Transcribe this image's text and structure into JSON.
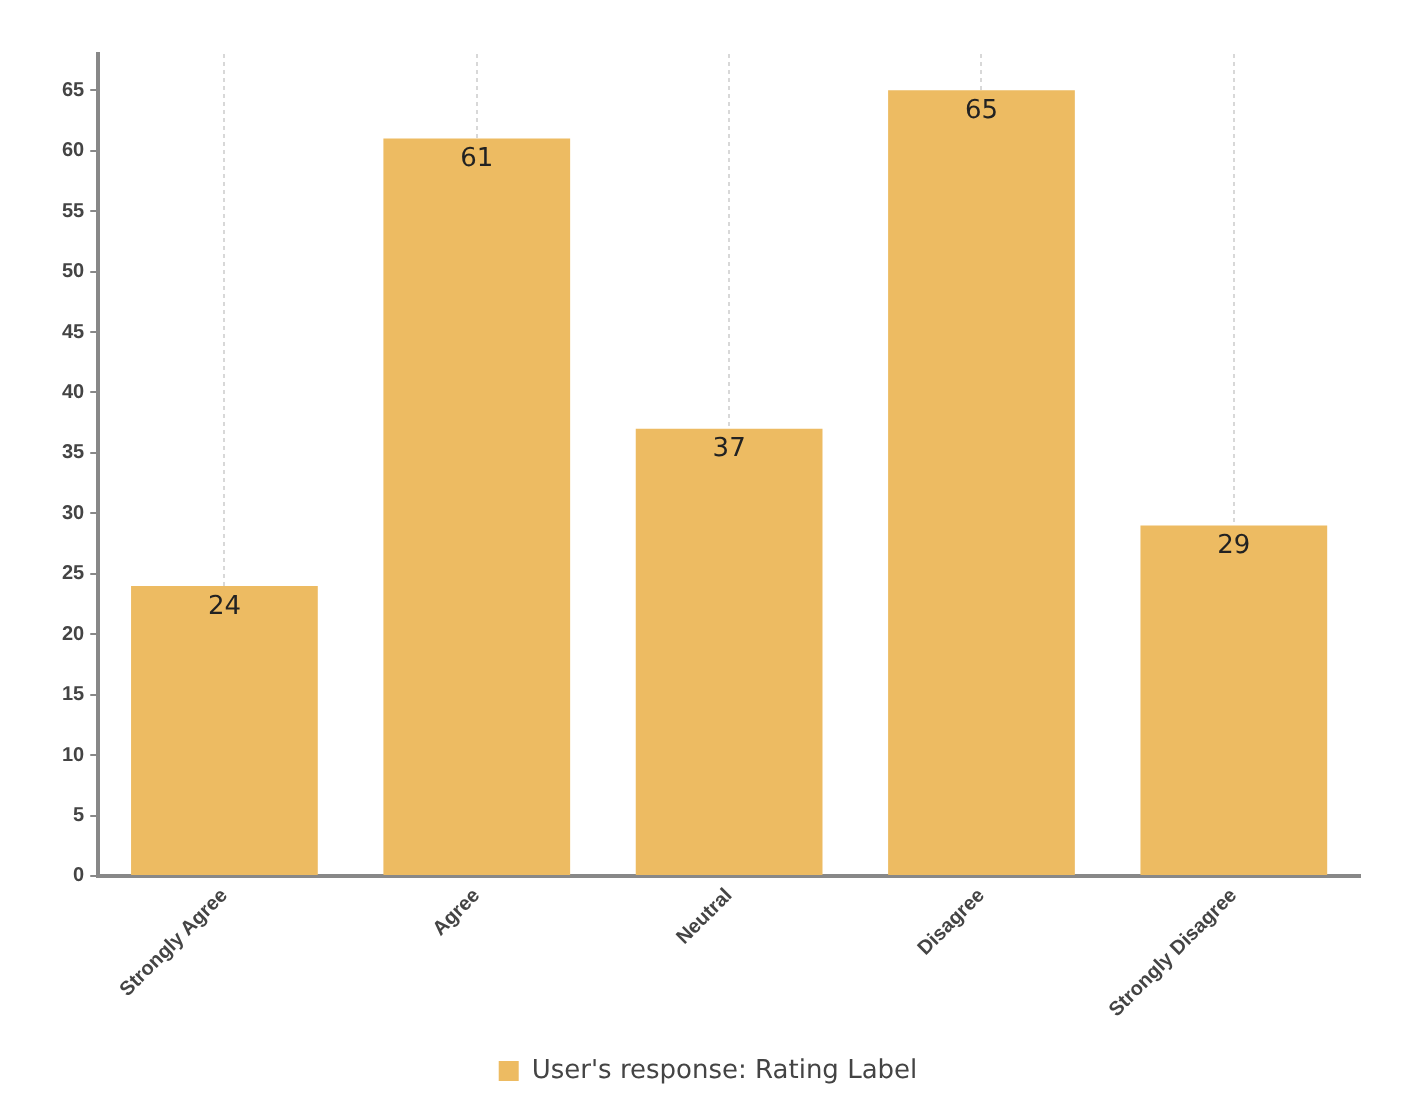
{
  "chart_data": {
    "type": "bar",
    "categories": [
      "Strongly Agree",
      "Agree",
      "Neutral",
      "Disagree",
      "Strongly Disagree"
    ],
    "series": [
      {
        "name": "User's response: Rating Label",
        "color": "#edbb62",
        "values": [
          24,
          61,
          37,
          65,
          29
        ]
      }
    ],
    "ylim": [
      0,
      68
    ],
    "yticks": [
      0,
      5,
      10,
      15,
      20,
      25,
      30,
      35,
      40,
      45,
      50,
      55,
      60,
      65
    ],
    "grid": "x",
    "legend": "bottom",
    "data_labels": true
  }
}
